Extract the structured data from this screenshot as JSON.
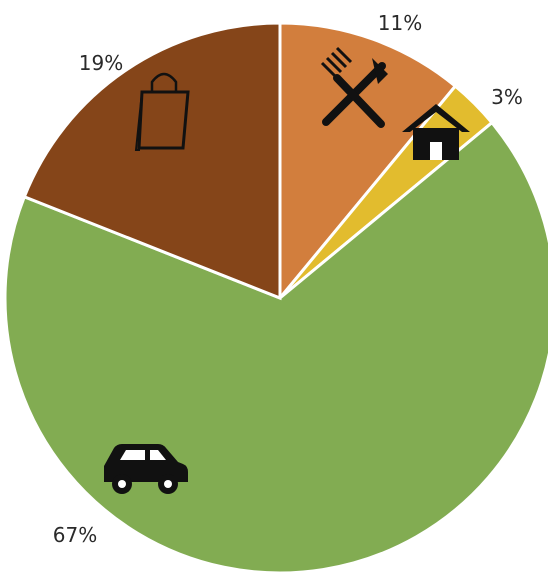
{
  "chart_data": {
    "type": "pie",
    "start_angle_deg": 0,
    "direction": "clockwise",
    "slices": [
      {
        "category": "dining",
        "value": 11,
        "label": "11%",
        "color": "#D27E3D",
        "icon": "fork-knife-icon"
      },
      {
        "category": "home",
        "value": 3,
        "label": "3%",
        "color": "#E2BC2E",
        "icon": "house-icon"
      },
      {
        "category": "car",
        "value": 67,
        "label": "67%",
        "color": "#82AC52",
        "icon": "car-icon"
      },
      {
        "category": "shopping",
        "value": 19,
        "label": "19%",
        "color": "#854519",
        "icon": "shopping-bag-icon"
      }
    ]
  }
}
